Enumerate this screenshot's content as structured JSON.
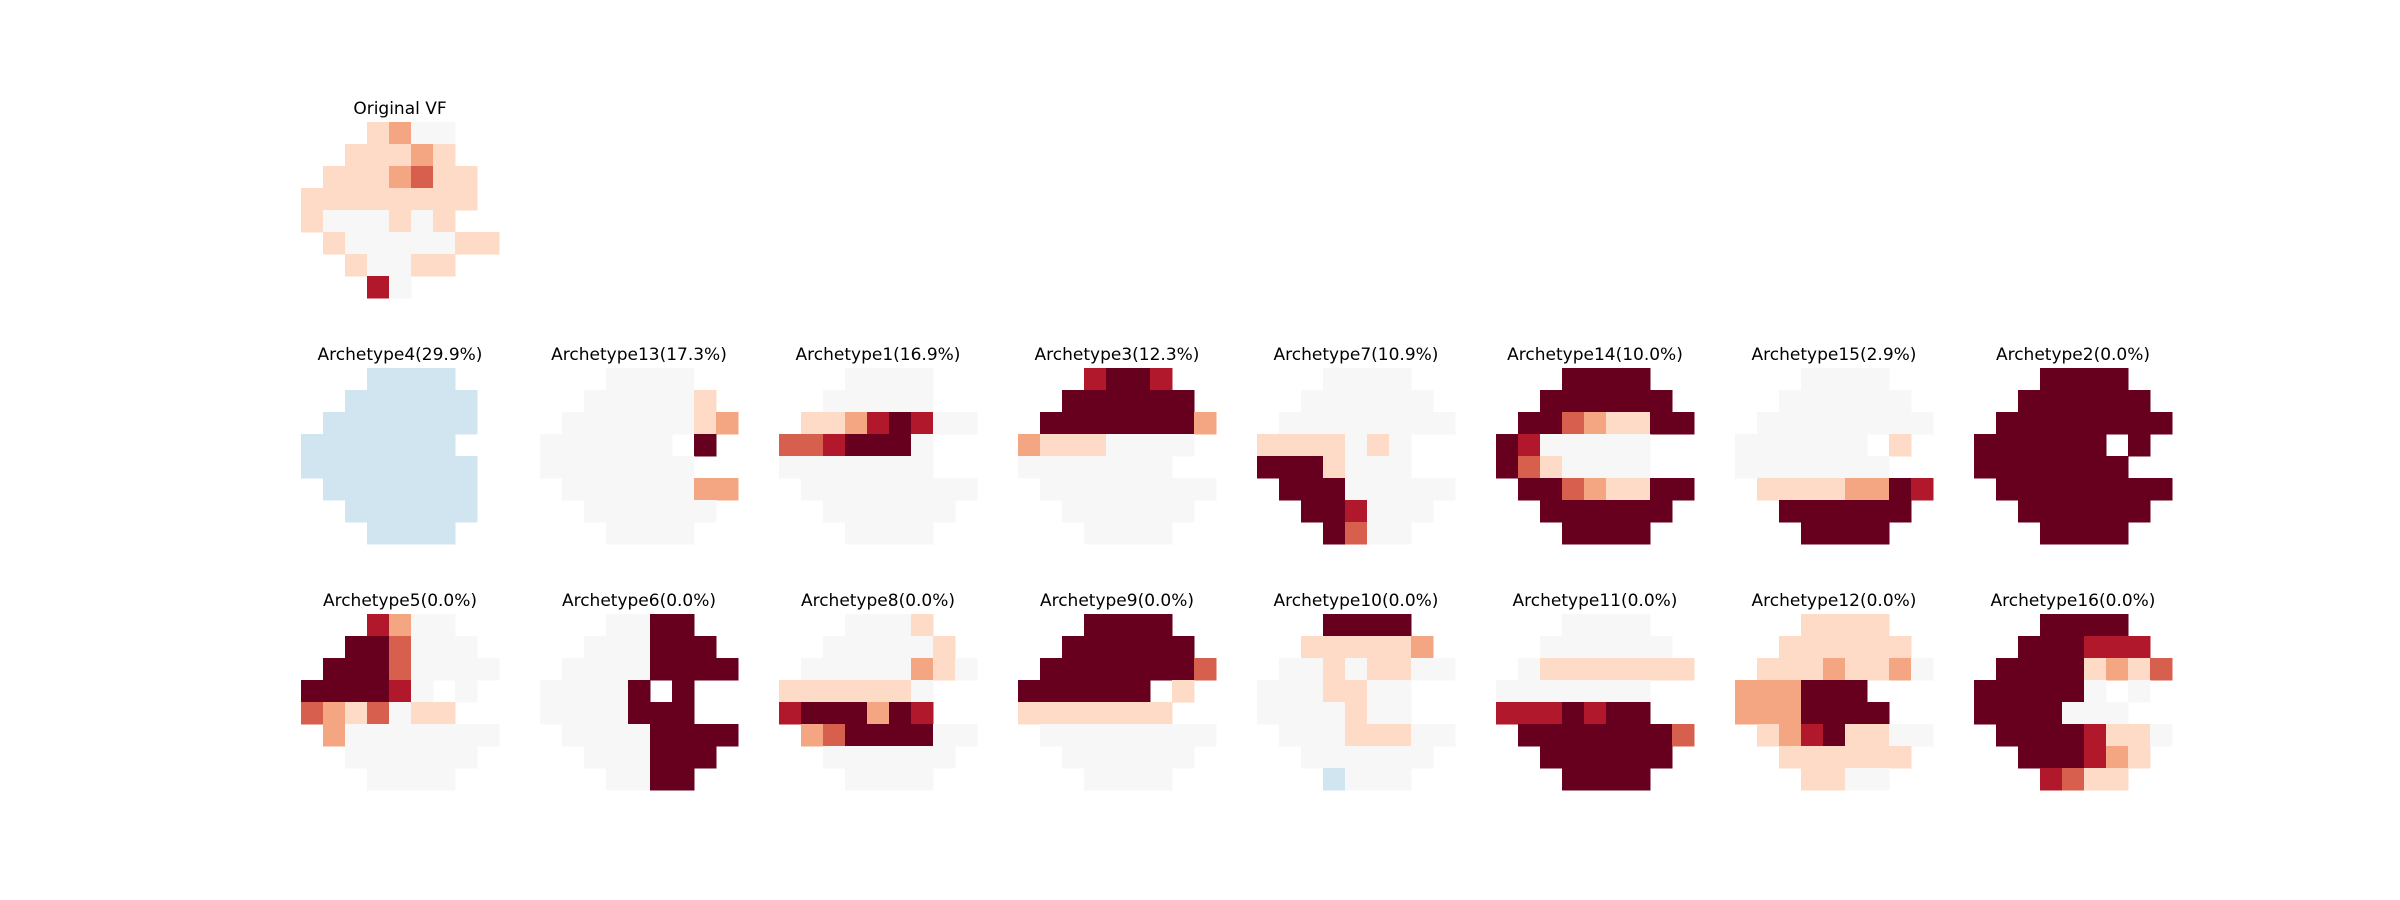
{
  "chart_data": {
    "type": "heatmap",
    "grid_rows": 8,
    "grid_cols": 9,
    "grid": "off",
    "axes": "off",
    "colormap": "RdBu_r",
    "colors": {
      "dark_red": "#67001f",
      "red": "#b2182b",
      "salmon": "#d6604d",
      "peach": "#f4a582",
      "light_peach": "#fddbc7",
      "neutral": "#f7f7f7",
      "light_blue": "#d1e5f0"
    },
    "level_scale": "0 = light blue, 1 = neutral, 2-6 = increasingly saturated red",
    "panels": [
      {
        "title": "Original VF",
        "rows": [
          "...2311..",
          "..22232..",
          ".2223422.",
          "22222222.",
          "2111212..",
          ".21111122",
          "..21122..",
          "...51..."
        ]
      },
      {
        "title": "Archetype4(29.9%)",
        "rows": [
          "...0000..",
          "..000000.",
          ".0000000.",
          "0000000..",
          "00000000.",
          ".0000000.",
          "..000000.",
          "...0000.."
        ]
      },
      {
        "title": "Archetype13(17.3%)",
        "rows": [
          "...1111..",
          "..111112.",
          ".11111123",
          "111111.6.",
          "1111111..",
          ".11111133",
          "..111111.",
          "...1111.."
        ]
      },
      {
        "title": "Archetype1(16.9%)",
        "rows": [
          "...1111..",
          "..11111..",
          ".22356511",
          "4456661..",
          "1111111..",
          ".11111111",
          "..111111.",
          "...1111.."
        ]
      },
      {
        "title": "Archetype3(12.3%)",
        "rows": [
          "...5665..",
          "..666666.",
          ".66666663",
          "32221111.",
          "1111111..",
          ".11111111",
          "..111111.",
          "...1111.."
        ]
      },
      {
        "title": "Archetype7(10.9%)",
        "rows": [
          "...1111..",
          "..111111.",
          ".11111111",
          "2222121..",
          "6662111..",
          ".66611111",
          "..665111.",
          "...6411.."
        ]
      },
      {
        "title": "Archetype14(10.0%)",
        "rows": [
          "...6666..",
          "..666666.",
          ".66432266",
          "6511111..",
          "6421111..",
          ".66432266",
          "..666666.",
          "...6666.."
        ]
      },
      {
        "title": "Archetype15(2.9%)",
        "rows": [
          "...1111..",
          "..111111.",
          ".11111111",
          "111111.2.",
          "1111111..",
          ".22223365",
          "..666666.",
          "...6666.."
        ]
      },
      {
        "title": "Archetype2(0.0%)",
        "rows": [
          "...6666..",
          "..666666.",
          ".66666666",
          "666666.6.",
          "6666666..",
          ".66666666",
          "..666666.",
          "...6666.."
        ]
      },
      {
        "title": "Archetype5(0.0%)",
        "rows": [
          "...5311..",
          "..664111.",
          ".66641111",
          "666651.1.",
          "4324122..",
          ".31111111",
          "..111111.",
          "...1111.."
        ]
      },
      {
        "title": "Archetype6(0.0%)",
        "rows": [
          "...1166..",
          "..111666.",
          ".11116666",
          "11116.6..",
          "1111666..",
          ".11116666",
          "..111666.",
          "...1166.."
        ]
      },
      {
        "title": "Archetype8(0.0%)",
        "rows": [
          "...1112..",
          "..111112.",
          ".11111321",
          "2222221..",
          "5666365..",
          ".34666611",
          "..111111.",
          "...1111.."
        ]
      },
      {
        "title": "Archetype9(0.0%)",
        "rows": [
          "...6666..",
          "..666666.",
          ".66666664",
          "666666.2.",
          "2222222..",
          ".11111111",
          "..111111.",
          "...1111.."
        ]
      },
      {
        "title": "Archetype10(0.0%)",
        "rows": [
          "...6666..",
          "..222223.",
          ".11212211",
          "1112211..",
          "1111211..",
          ".11122211",
          "..111111.",
          "...0111.."
        ]
      },
      {
        "title": "Archetype11(0.0%)",
        "rows": [
          "...1111..",
          "..111111.",
          ".12222222",
          "1111111..",
          "5556566..",
          ".66666664",
          "..666666.",
          "...6666.."
        ]
      },
      {
        "title": "Archetype12(0.0%)",
        "rows": [
          "...2222..",
          "..222222.",
          ".22232231",
          "333666...",
          "3336666..",
          ".23562211",
          "..222222.",
          "...2211.."
        ]
      },
      {
        "title": "Archetype16(0.0%)",
        "rows": [
          "...6666..",
          "..666555.",
          ".66662324",
          "666661.1.",
          "6666111..",
          ".66665221",
          "..666532.",
          "...5422.."
        ]
      }
    ]
  }
}
